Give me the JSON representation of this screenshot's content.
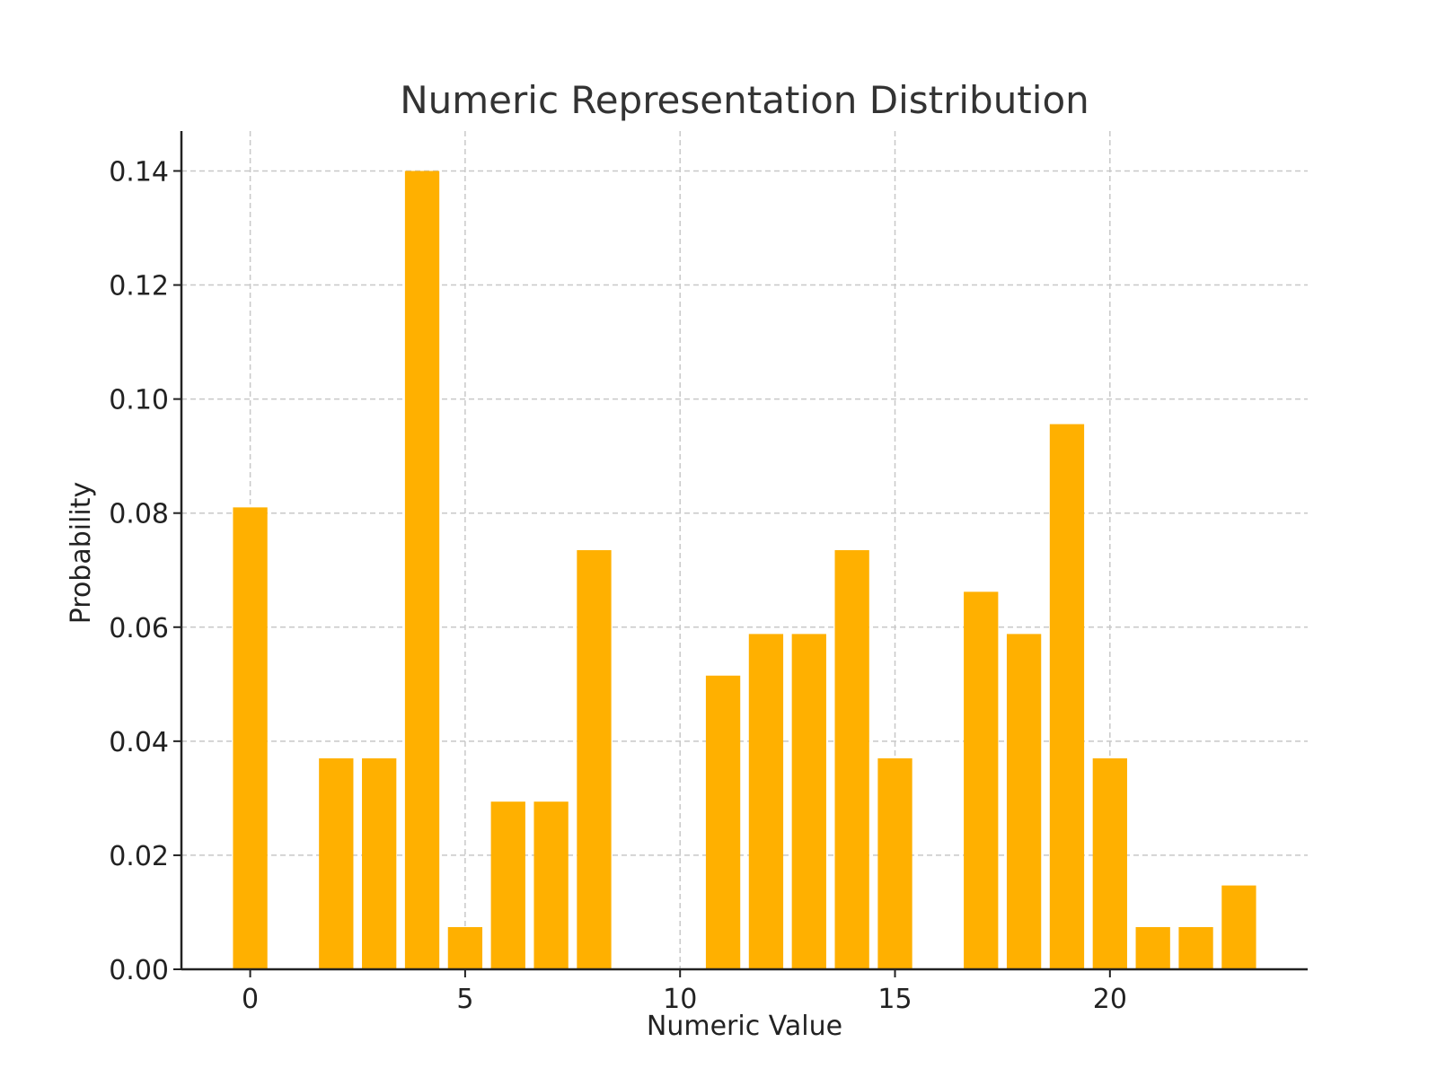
{
  "chart_data": {
    "type": "bar",
    "title": "Numeric Representation Distribution",
    "xlabel": "Numeric Value",
    "ylabel": "Probability",
    "x": [
      0,
      1,
      2,
      3,
      4,
      5,
      6,
      7,
      8,
      9,
      10,
      11,
      12,
      13,
      14,
      15,
      16,
      17,
      18,
      19,
      20,
      21,
      22,
      23
    ],
    "values": [
      0.081,
      0.0,
      0.037,
      0.037,
      0.14,
      0.0074,
      0.0294,
      0.0294,
      0.0735,
      0.0,
      0.0,
      0.0515,
      0.0588,
      0.0588,
      0.0735,
      0.037,
      0.0,
      0.0662,
      0.0588,
      0.0956,
      0.037,
      0.0074,
      0.0074,
      0.0147
    ],
    "xlim": [
      -1.6,
      24.6
    ],
    "ylim": [
      0,
      0.147
    ],
    "x_ticks": [
      0,
      5,
      10,
      15,
      20
    ],
    "x_tick_labels": [
      "0",
      "5",
      "10",
      "15",
      "20"
    ],
    "y_ticks": [
      0,
      0.02,
      0.04,
      0.06,
      0.08,
      0.1,
      0.12,
      0.14
    ],
    "y_tick_labels": [
      "0.00",
      "0.02",
      "0.04",
      "0.06",
      "0.08",
      "0.10",
      "0.12",
      "0.14"
    ],
    "grid": true,
    "bar_color": "#FFB000"
  }
}
